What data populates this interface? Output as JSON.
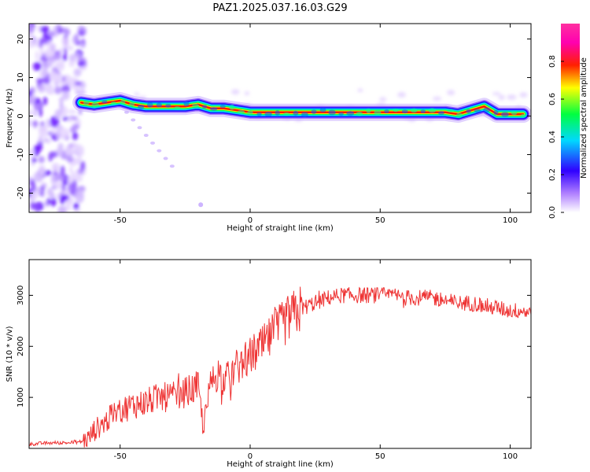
{
  "title": "PAZ1.2025.037.16.03.G29",
  "chart_data": [
    {
      "type": "heatmap",
      "xlabel": "Height of straight line (km)",
      "ylabel": "Frequency (Hz)",
      "xlim": [
        -85,
        108
      ],
      "ylim": [
        -25,
        24
      ],
      "xticks": [
        -50,
        0,
        50,
        100
      ],
      "yticks": [
        -20,
        -10,
        0,
        10,
        20
      ],
      "grid": false,
      "ridge": {
        "x": [
          -65,
          -60,
          -55,
          -50,
          -45,
          -40,
          -35,
          -30,
          -25,
          -20,
          -15,
          -10,
          -5,
          0,
          5,
          10,
          15,
          20,
          25,
          30,
          35,
          40,
          45,
          50,
          55,
          60,
          65,
          70,
          75,
          80,
          85,
          90,
          95,
          100,
          105
        ],
        "y": [
          3.5,
          3,
          3.5,
          4,
          3,
          2.5,
          2.5,
          2.5,
          2.5,
          3,
          2,
          2,
          1.5,
          1,
          1,
          1,
          1,
          1,
          1,
          1,
          1,
          1,
          1,
          1,
          1,
          1,
          1,
          1,
          1,
          0.5,
          1.5,
          2.5,
          0.5,
          0.5,
          0.5
        ]
      },
      "faint_branch": {
        "x": [
          -50,
          -30
        ],
        "y": [
          3,
          -13
        ]
      },
      "colorbar": {
        "label": "Normalized spectral amplitude",
        "range": [
          0,
          1
        ],
        "ticks": [
          0.0,
          0.2,
          0.4,
          0.6,
          0.8
        ],
        "tick_labels": [
          "0.0",
          "0.2",
          "0.4",
          "0.6",
          "0.8"
        ],
        "colors": [
          "#ffffff",
          "#7b00ff",
          "#0000ff",
          "#00ffff",
          "#00ff00",
          "#ffff00",
          "#ff0000",
          "#ff00ff"
        ]
      }
    },
    {
      "type": "line",
      "xlabel": "Height of straight line (km)",
      "ylabel": "SNR (10 * v/v)",
      "xlim": [
        -85,
        108
      ],
      "ylim": [
        0,
        3700
      ],
      "xticks": [
        -50,
        0,
        50,
        100
      ],
      "yticks": [
        1000,
        2000,
        3000
      ],
      "color": "#ee3333",
      "grid": false,
      "x": [
        -85,
        -80,
        -75,
        -70,
        -65,
        -62,
        -60,
        -55,
        -50,
        -45,
        -40,
        -35,
        -30,
        -25,
        -20,
        -18,
        -15,
        -12,
        -10,
        -5,
        0,
        5,
        10,
        15,
        20,
        25,
        30,
        35,
        40,
        45,
        50,
        55,
        60,
        65,
        70,
        75,
        80,
        85,
        90,
        95,
        100,
        105,
        108
      ],
      "y": [
        80,
        100,
        110,
        110,
        130,
        200,
        350,
        550,
        750,
        850,
        900,
        1000,
        1000,
        1100,
        1200,
        400,
        1300,
        1500,
        1300,
        1600,
        1800,
        2000,
        2300,
        2550,
        2750,
        2850,
        2950,
        3000,
        3000,
        3000,
        3000,
        3000,
        2950,
        2950,
        2950,
        2900,
        2850,
        2850,
        2800,
        2750,
        2700,
        2700,
        2650
      ]
    }
  ]
}
